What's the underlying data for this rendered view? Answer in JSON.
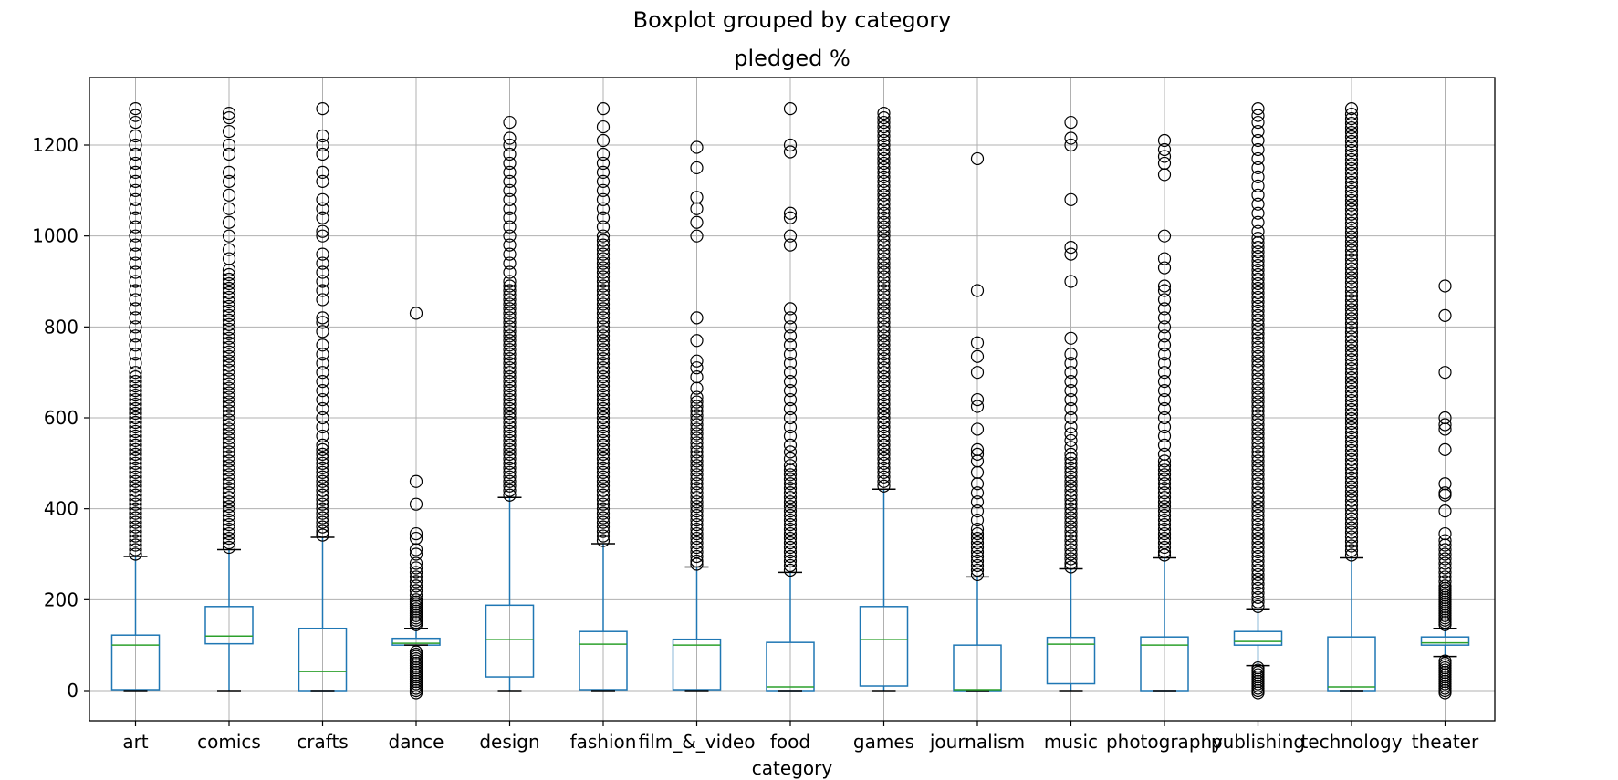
{
  "figure": {
    "suptitle": "Boxplot grouped by category"
  },
  "chart_data": {
    "type": "boxplot",
    "title": "pledged %",
    "xlabel": "category",
    "ylabel": "",
    "ylim": [
      -65,
      1355
    ],
    "yticks": [
      0,
      200,
      400,
      600,
      800,
      1000,
      1200
    ],
    "grid": true,
    "legend": "none",
    "colors": {
      "box": "#1f77b4",
      "median": "#2ca02c",
      "flier": "#000000",
      "grid": "#b0b0b0",
      "axes": "#000000"
    },
    "categories": [
      "art",
      "comics",
      "crafts",
      "dance",
      "design",
      "fashion",
      "film_&_video",
      "food",
      "games",
      "journalism",
      "music",
      "photography",
      "publishing",
      "technology",
      "theater"
    ],
    "boxes": [
      {
        "category": "art",
        "whislo": 0,
        "q1": 2,
        "med": 100,
        "q3": 122,
        "whishi": 295,
        "fliers": [
          300,
          310,
          320,
          330,
          340,
          350,
          360,
          370,
          380,
          390,
          400,
          410,
          420,
          430,
          440,
          450,
          460,
          470,
          480,
          490,
          500,
          510,
          520,
          530,
          540,
          550,
          560,
          570,
          580,
          590,
          600,
          610,
          620,
          630,
          640,
          650,
          660,
          670,
          680,
          690,
          700,
          720,
          740,
          760,
          780,
          800,
          820,
          840,
          860,
          880,
          900,
          920,
          940,
          960,
          980,
          1000,
          1020,
          1040,
          1060,
          1080,
          1100,
          1120,
          1140,
          1160,
          1180,
          1200,
          1220,
          1250,
          1265,
          1280
        ]
      },
      {
        "category": "comics",
        "whislo": 0,
        "q1": 103,
        "med": 120,
        "q3": 185,
        "whishi": 310,
        "fliers": [
          315,
          325,
          335,
          345,
          355,
          365,
          375,
          385,
          395,
          405,
          415,
          425,
          435,
          445,
          455,
          465,
          475,
          485,
          495,
          505,
          515,
          525,
          535,
          545,
          555,
          565,
          575,
          585,
          595,
          605,
          615,
          625,
          635,
          645,
          655,
          665,
          675,
          685,
          695,
          705,
          715,
          725,
          735,
          745,
          755,
          765,
          775,
          785,
          795,
          805,
          815,
          825,
          835,
          845,
          855,
          865,
          875,
          885,
          895,
          905,
          915,
          925,
          950,
          970,
          1000,
          1030,
          1060,
          1090,
          1120,
          1140,
          1180,
          1200,
          1230,
          1260,
          1270
        ]
      },
      {
        "category": "crafts",
        "whislo": 0,
        "q1": 0,
        "med": 42,
        "q3": 137,
        "whishi": 337,
        "fliers": [
          342,
          350,
          360,
          370,
          380,
          390,
          400,
          410,
          420,
          430,
          440,
          450,
          460,
          470,
          480,
          490,
          500,
          510,
          520,
          530,
          540,
          560,
          580,
          600,
          620,
          640,
          660,
          680,
          700,
          720,
          740,
          760,
          790,
          810,
          820,
          860,
          880,
          900,
          920,
          940,
          960,
          1000,
          1010,
          1040,
          1060,
          1080,
          1120,
          1140,
          1180,
          1200,
          1220,
          1280
        ]
      },
      {
        "category": "dance",
        "whislo": 100,
        "q1": 100,
        "med": 104,
        "q3": 115,
        "whishi": 137,
        "fliers": [
          -5,
          0,
          5,
          10,
          15,
          20,
          25,
          30,
          35,
          40,
          45,
          50,
          55,
          60,
          65,
          70,
          75,
          80,
          85,
          145,
          150,
          155,
          160,
          165,
          170,
          175,
          180,
          185,
          190,
          195,
          200,
          210,
          220,
          230,
          240,
          250,
          260,
          270,
          280,
          300,
          310,
          335,
          345,
          410,
          460,
          830
        ]
      },
      {
        "category": "design",
        "whislo": 0,
        "q1": 30,
        "med": 112,
        "q3": 188,
        "whishi": 425,
        "fliers": [
          430,
          440,
          450,
          460,
          470,
          480,
          490,
          500,
          510,
          520,
          530,
          540,
          550,
          560,
          570,
          580,
          590,
          600,
          610,
          620,
          630,
          640,
          650,
          660,
          670,
          680,
          690,
          700,
          710,
          720,
          730,
          740,
          750,
          760,
          770,
          780,
          790,
          800,
          810,
          820,
          830,
          840,
          850,
          860,
          870,
          880,
          890,
          900,
          920,
          940,
          960,
          980,
          1000,
          1020,
          1040,
          1060,
          1080,
          1100,
          1120,
          1140,
          1160,
          1180,
          1200,
          1215,
          1250
        ]
      },
      {
        "category": "fashion",
        "whislo": 0,
        "q1": 2,
        "med": 102,
        "q3": 130,
        "whishi": 323,
        "fliers": [
          330,
          340,
          350,
          360,
          370,
          380,
          390,
          400,
          410,
          420,
          430,
          440,
          450,
          460,
          470,
          480,
          490,
          500,
          510,
          520,
          530,
          540,
          550,
          560,
          570,
          580,
          590,
          600,
          610,
          620,
          630,
          640,
          650,
          660,
          670,
          680,
          690,
          700,
          710,
          720,
          730,
          740,
          750,
          760,
          770,
          780,
          790,
          800,
          810,
          820,
          830,
          840,
          850,
          860,
          870,
          880,
          890,
          900,
          910,
          920,
          930,
          940,
          950,
          960,
          970,
          980,
          990,
          1000,
          1020,
          1040,
          1060,
          1080,
          1100,
          1120,
          1140,
          1160,
          1180,
          1210,
          1240,
          1280
        ]
      },
      {
        "category": "film_&_video",
        "whislo": 0,
        "q1": 2,
        "med": 100,
        "q3": 113,
        "whishi": 272,
        "fliers": [
          278,
          285,
          295,
          305,
          315,
          325,
          335,
          345,
          355,
          365,
          375,
          385,
          395,
          405,
          415,
          425,
          435,
          445,
          455,
          465,
          475,
          485,
          495,
          505,
          515,
          525,
          535,
          545,
          555,
          565,
          575,
          585,
          595,
          605,
          615,
          625,
          635,
          645,
          665,
          690,
          710,
          725,
          770,
          820,
          1000,
          1030,
          1060,
          1085,
          1150,
          1195
        ]
      },
      {
        "category": "food",
        "whislo": 0,
        "q1": 0,
        "med": 8,
        "q3": 106,
        "whishi": 260,
        "fliers": [
          265,
          275,
          285,
          295,
          305,
          315,
          325,
          335,
          345,
          355,
          365,
          375,
          385,
          395,
          405,
          415,
          425,
          435,
          445,
          455,
          465,
          475,
          485,
          495,
          510,
          525,
          540,
          560,
          580,
          600,
          620,
          640,
          660,
          680,
          700,
          720,
          740,
          760,
          780,
          800,
          820,
          840,
          980,
          1000,
          1040,
          1050,
          1185,
          1200,
          1280
        ]
      },
      {
        "category": "games",
        "whislo": 0,
        "q1": 10,
        "med": 112,
        "q3": 185,
        "whishi": 443,
        "fliers": [
          450,
          460,
          470,
          480,
          490,
          500,
          510,
          520,
          530,
          540,
          550,
          560,
          570,
          580,
          590,
          600,
          610,
          620,
          630,
          640,
          650,
          660,
          670,
          680,
          690,
          700,
          710,
          720,
          730,
          740,
          750,
          760,
          770,
          780,
          790,
          800,
          810,
          820,
          830,
          840,
          850,
          860,
          870,
          880,
          890,
          900,
          910,
          920,
          930,
          940,
          950,
          960,
          970,
          980,
          990,
          1000,
          1010,
          1020,
          1030,
          1040,
          1050,
          1060,
          1070,
          1080,
          1090,
          1100,
          1110,
          1120,
          1130,
          1140,
          1150,
          1160,
          1170,
          1180,
          1190,
          1200,
          1210,
          1220,
          1230,
          1240,
          1250,
          1260,
          1270
        ]
      },
      {
        "category": "journalism",
        "whislo": 0,
        "q1": 0,
        "med": 2,
        "q3": 100,
        "whishi": 250,
        "fliers": [
          255,
          265,
          275,
          285,
          295,
          305,
          315,
          325,
          335,
          345,
          355,
          375,
          395,
          415,
          435,
          455,
          480,
          505,
          520,
          530,
          575,
          625,
          640,
          700,
          735,
          765,
          880,
          1170
        ]
      },
      {
        "category": "music",
        "whislo": 0,
        "q1": 15,
        "med": 102,
        "q3": 117,
        "whishi": 268,
        "fliers": [
          272,
          280,
          290,
          300,
          310,
          320,
          330,
          340,
          350,
          360,
          370,
          380,
          390,
          400,
          410,
          420,
          430,
          440,
          450,
          460,
          470,
          480,
          490,
          500,
          510,
          520,
          535,
          550,
          565,
          580,
          600,
          620,
          640,
          660,
          680,
          700,
          720,
          740,
          775,
          900,
          960,
          975,
          1080,
          1200,
          1215,
          1250
        ]
      },
      {
        "category": "photography",
        "whislo": 0,
        "q1": 0,
        "med": 100,
        "q3": 118,
        "whishi": 292,
        "fliers": [
          298,
          305,
          315,
          325,
          335,
          345,
          355,
          365,
          375,
          385,
          395,
          405,
          415,
          425,
          435,
          445,
          455,
          465,
          475,
          485,
          495,
          505,
          520,
          540,
          560,
          580,
          600,
          620,
          640,
          660,
          680,
          700,
          720,
          740,
          760,
          780,
          800,
          820,
          840,
          860,
          880,
          890,
          930,
          950,
          1000,
          1135,
          1160,
          1175,
          1190,
          1210
        ]
      },
      {
        "category": "publishing",
        "whislo": 55,
        "q1": 100,
        "med": 108,
        "q3": 130,
        "whishi": 178,
        "fliers": [
          -5,
          0,
          5,
          10,
          15,
          20,
          25,
          30,
          35,
          40,
          45,
          50,
          185,
          195,
          205,
          215,
          225,
          235,
          245,
          255,
          265,
          275,
          285,
          295,
          305,
          315,
          325,
          335,
          345,
          355,
          365,
          375,
          385,
          395,
          405,
          415,
          425,
          435,
          445,
          455,
          465,
          475,
          485,
          495,
          505,
          515,
          525,
          535,
          545,
          555,
          565,
          575,
          585,
          595,
          605,
          615,
          625,
          635,
          645,
          655,
          665,
          675,
          685,
          695,
          705,
          715,
          725,
          735,
          745,
          755,
          765,
          775,
          785,
          795,
          805,
          815,
          825,
          835,
          845,
          855,
          865,
          875,
          885,
          895,
          905,
          915,
          925,
          935,
          945,
          955,
          965,
          975,
          985,
          995,
          1010,
          1030,
          1050,
          1070,
          1090,
          1110,
          1130,
          1150,
          1170,
          1190,
          1210,
          1230,
          1250,
          1265,
          1280
        ]
      },
      {
        "category": "technology",
        "whislo": 0,
        "q1": 0,
        "med": 8,
        "q3": 118,
        "whishi": 292,
        "fliers": [
          298,
          308,
          318,
          328,
          338,
          348,
          358,
          368,
          378,
          388,
          398,
          408,
          418,
          428,
          438,
          448,
          458,
          468,
          478,
          488,
          498,
          508,
          518,
          528,
          538,
          548,
          558,
          568,
          578,
          588,
          598,
          608,
          618,
          628,
          638,
          648,
          658,
          668,
          678,
          688,
          698,
          708,
          718,
          728,
          738,
          748,
          758,
          768,
          778,
          788,
          798,
          808,
          818,
          828,
          838,
          848,
          858,
          868,
          878,
          888,
          898,
          908,
          918,
          928,
          938,
          948,
          958,
          968,
          978,
          988,
          998,
          1008,
          1018,
          1028,
          1038,
          1048,
          1058,
          1068,
          1078,
          1088,
          1098,
          1108,
          1118,
          1128,
          1138,
          1148,
          1158,
          1168,
          1178,
          1188,
          1198,
          1208,
          1218,
          1228,
          1238,
          1248,
          1258,
          1268,
          1280
        ]
      },
      {
        "category": "theater",
        "whislo": 75,
        "q1": 100,
        "med": 105,
        "q3": 118,
        "whishi": 137,
        "fliers": [
          -5,
          0,
          5,
          10,
          15,
          20,
          25,
          30,
          35,
          40,
          45,
          50,
          55,
          60,
          65,
          145,
          150,
          155,
          160,
          165,
          170,
          175,
          180,
          185,
          190,
          195,
          200,
          205,
          210,
          215,
          220,
          225,
          230,
          240,
          250,
          260,
          270,
          280,
          290,
          300,
          310,
          320,
          330,
          345,
          395,
          430,
          435,
          455,
          530,
          575,
          585,
          600,
          700,
          825,
          890
        ]
      }
    ]
  }
}
